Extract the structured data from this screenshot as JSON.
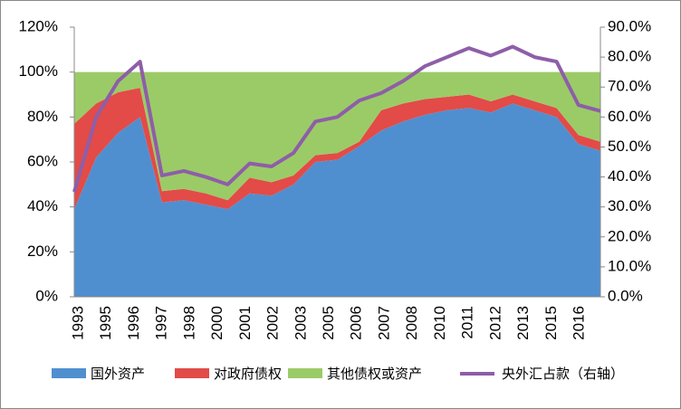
{
  "chart_data": {
    "type": "stacked_area_line",
    "categories": [
      null,
      null,
      null,
      null,
      null,
      null,
      null,
      null,
      null,
      null,
      null,
      null,
      null,
      null,
      null,
      null,
      null,
      null,
      null,
      null,
      null,
      null,
      null,
      null,
      null
    ],
    "xtick_labels": [
      "1993",
      "1995",
      "1996",
      "1997",
      "1998",
      "2000",
      "2001",
      "2002",
      "2003",
      "2005",
      "2006",
      "2007",
      "2008",
      "2010",
      "2011",
      "2012",
      "2013",
      "2015",
      "2016"
    ],
    "series": [
      {
        "name": "国外资产",
        "color": "#4f8fd0",
        "values": [
          39,
          62,
          73,
          80,
          42,
          43,
          41,
          39,
          46,
          45,
          50,
          60,
          61,
          67,
          74,
          78,
          81,
          83,
          84,
          82,
          86,
          83,
          80,
          68,
          65
        ]
      },
      {
        "name": "对政府债权",
        "color": "#e24b47",
        "values": [
          38,
          24,
          18,
          13,
          5,
          5,
          5,
          4,
          7,
          6,
          4,
          3,
          3,
          2,
          9,
          8,
          7,
          6,
          6,
          5,
          4,
          4,
          4,
          4,
          4
        ]
      },
      {
        "name": "其他债权或资产",
        "color": "#9bcb67",
        "values": [
          23,
          14,
          9,
          7,
          53,
          52,
          54,
          57,
          47,
          49,
          46,
          37,
          36,
          31,
          17,
          14,
          12,
          11,
          10,
          13,
          10,
          13,
          16,
          28,
          31
        ]
      },
      {
        "name": "央外汇占款（右轴）",
        "color": "#8e5ea8",
        "axis": "y2",
        "values": [
          35,
          60,
          72,
          78.5,
          40.5,
          42,
          40,
          37.5,
          44.5,
          43.5,
          48,
          58.5,
          60,
          65.5,
          68,
          72,
          77,
          80,
          83,
          80.5,
          83.5,
          80,
          78.5,
          64,
          62
        ]
      }
    ],
    "ylim": [
      0,
      120
    ],
    "yticks": [
      {
        "value": 0,
        "label": "0%"
      },
      {
        "value": 20,
        "label": "20%"
      },
      {
        "value": 40,
        "label": "40%"
      },
      {
        "value": 60,
        "label": "60%"
      },
      {
        "value": 80,
        "label": "80%"
      },
      {
        "value": 100,
        "label": "100%"
      },
      {
        "value": 120,
        "label": "120%"
      }
    ],
    "y2lim": [
      0,
      90
    ],
    "y2ticks": [
      {
        "value": 0,
        "label": "0.0%"
      },
      {
        "value": 10,
        "label": "10.0%"
      },
      {
        "value": 20,
        "label": "20.0%"
      },
      {
        "value": 30,
        "label": "30.0%"
      },
      {
        "value": 40,
        "label": "40.0%"
      },
      {
        "value": 50,
        "label": "50.0%"
      },
      {
        "value": 60,
        "label": "60.0%"
      },
      {
        "value": 70,
        "label": "70.0%"
      },
      {
        "value": 80,
        "label": "80.0%"
      },
      {
        "value": 90,
        "label": "90.0%"
      }
    ]
  }
}
